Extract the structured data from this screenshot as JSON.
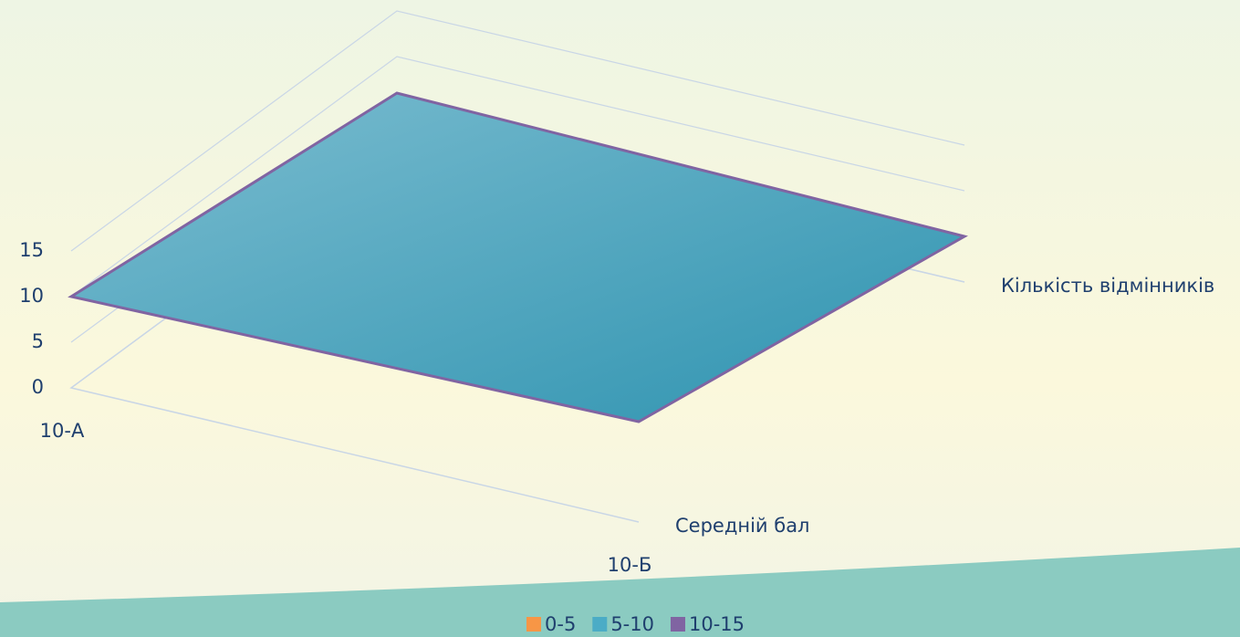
{
  "chart_data": {
    "type": "surface3d",
    "categories": [
      "10-А",
      "10-Б"
    ],
    "series": [
      {
        "name": "Середній бал",
        "values": [
          10,
          11
        ]
      },
      {
        "name": "Кількість відмінників",
        "values": [
          6,
          5
        ]
      }
    ],
    "bands": [
      {
        "name": "0-5",
        "color": "#f79646"
      },
      {
        "name": "5-10",
        "color": "#4bacc6"
      },
      {
        "name": "10-15",
        "color": "#8064a2"
      }
    ],
    "ylim": [
      0,
      15
    ],
    "yticks": [
      0,
      5,
      10,
      15
    ],
    "grid": true
  }
}
